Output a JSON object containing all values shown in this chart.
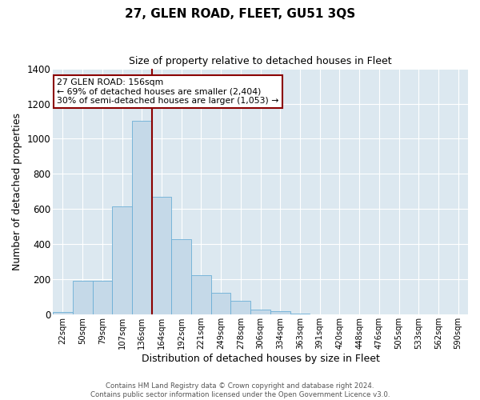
{
  "title": "27, GLEN ROAD, FLEET, GU51 3QS",
  "subtitle": "Size of property relative to detached houses in Fleet",
  "xlabel": "Distribution of detached houses by size in Fleet",
  "ylabel": "Number of detached properties",
  "bar_labels": [
    "22sqm",
    "50sqm",
    "79sqm",
    "107sqm",
    "136sqm",
    "164sqm",
    "192sqm",
    "221sqm",
    "249sqm",
    "278sqm",
    "306sqm",
    "334sqm",
    "363sqm",
    "391sqm",
    "420sqm",
    "448sqm",
    "476sqm",
    "505sqm",
    "533sqm",
    "562sqm",
    "590sqm"
  ],
  "bar_values": [
    15,
    192,
    192,
    617,
    1100,
    670,
    430,
    225,
    125,
    80,
    30,
    20,
    5,
    2,
    1,
    1,
    0,
    0,
    0,
    0,
    0
  ],
  "bar_color": "#c5d9e8",
  "bar_edge_color": "#6baed6",
  "bg_color": "#dce8f0",
  "grid_color": "#ffffff",
  "vline_color": "#8b0000",
  "annotation_lines": [
    "27 GLEN ROAD: 156sqm",
    "← 69% of detached houses are smaller (2,404)",
    "30% of semi-detached houses are larger (1,053) →"
  ],
  "annotation_box_color": "#8b0000",
  "ylim": [
    0,
    1400
  ],
  "yticks": [
    0,
    200,
    400,
    600,
    800,
    1000,
    1200,
    1400
  ],
  "footer_lines": [
    "Contains HM Land Registry data © Crown copyright and database right 2024.",
    "Contains public sector information licensed under the Open Government Licence v3.0."
  ]
}
